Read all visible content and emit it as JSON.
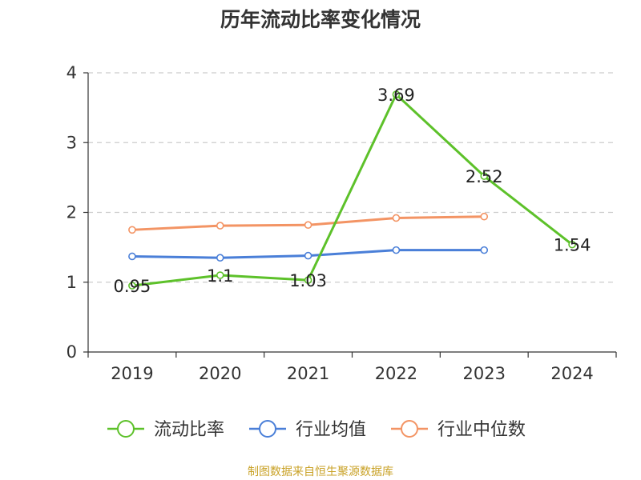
{
  "chart_data": {
    "type": "line",
    "title": "历年流动比率变化情况",
    "categories": [
      "2019",
      "2020",
      "2021",
      "2022",
      "2023",
      "2024"
    ],
    "ylim": [
      0,
      4
    ],
    "yticks": [
      "0",
      "1",
      "2",
      "3",
      "4"
    ],
    "grid": "horizontal dashed",
    "legend_position": "bottom",
    "series": [
      {
        "name": "流动比率",
        "color": "#5dc12a",
        "values": [
          0.95,
          1.1,
          1.03,
          3.69,
          2.52,
          1.54
        ],
        "labels": [
          "0.95",
          "1.1",
          "1.03",
          "3.69",
          "2.52",
          "1.54"
        ]
      },
      {
        "name": "行业均值",
        "color": "#4a7fd8",
        "values": [
          1.37,
          1.35,
          1.38,
          1.46,
          1.46,
          null
        ]
      },
      {
        "name": "行业中位数",
        "color": "#f39464",
        "values": [
          1.75,
          1.81,
          1.82,
          1.92,
          1.94,
          null
        ]
      }
    ]
  },
  "source": "制图数据来自恒生聚源数据库"
}
